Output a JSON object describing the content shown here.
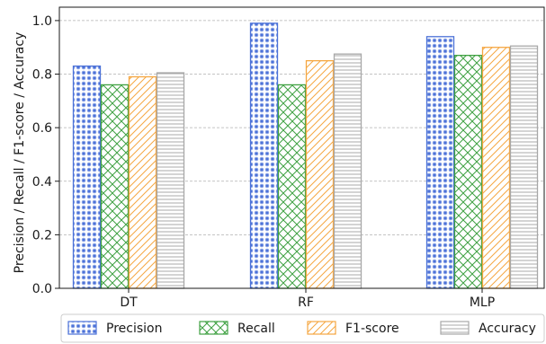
{
  "chart_data": {
    "type": "bar",
    "categories": [
      "DT",
      "RF",
      "MLP"
    ],
    "series": [
      {
        "name": "Precision",
        "values": [
          0.83,
          0.99,
          0.94
        ],
        "color": "#4c72d8",
        "pattern": "stars"
      },
      {
        "name": "Recall",
        "values": [
          0.76,
          0.76,
          0.87
        ],
        "color": "#3fa142",
        "pattern": "crosshatch"
      },
      {
        "name": "F1-score",
        "values": [
          0.79,
          0.85,
          0.9
        ],
        "color": "#f5a742",
        "pattern": "diagonal"
      },
      {
        "name": "Accuracy",
        "values": [
          0.805,
          0.875,
          0.905
        ],
        "color": "#a8a8a8",
        "pattern": "horizontal"
      }
    ],
    "ylabel": "Precision / Recall / F1-score / Accuracy",
    "xlabel": "",
    "title": "",
    "ylim": [
      0.0,
      1.05
    ],
    "yticks": [
      "0.0",
      "0.2",
      "0.4",
      "0.6",
      "0.8",
      "1.0"
    ],
    "grid": "y-dashed",
    "legend": "bottom"
  }
}
